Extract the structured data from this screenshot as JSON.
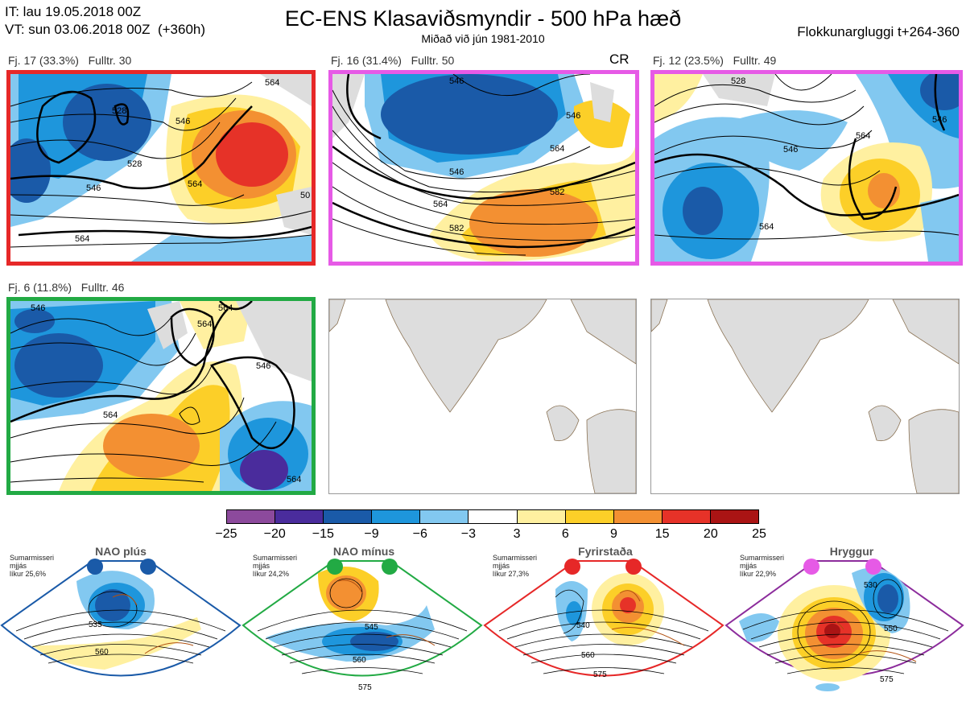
{
  "header": {
    "it": "IT: lau 19.05.2018 00Z",
    "vt": "VT: sun 03.06.2018 00Z  (+360h)",
    "title": "EC-ENS Klasaviðsmyndir - 500 hPa hæð",
    "subtitle": "Miðað við jún 1981-2010",
    "window": "Flokkunargluggi t+264-360"
  },
  "panels": [
    {
      "label": "Fj. 17 (33.3%)   Fulltr. 30",
      "frame_color": "#e62828",
      "contours": [
        "528",
        "546",
        "564",
        "564",
        "546",
        "50",
        "528",
        "564"
      ]
    },
    {
      "label": "Fj. 16 (31.4%)   Fulltr. 50",
      "frame_color": "#e65ae6",
      "badge": "CR",
      "contours": [
        "546",
        "564",
        "546",
        "564",
        "582",
        "582",
        "546"
      ]
    },
    {
      "label": "Fj. 12 (23.5%)   Fulltr. 49",
      "frame_color": "#e65ae6",
      "contours": [
        "546",
        "564",
        "564",
        "546",
        "528"
      ]
    },
    {
      "label": "Fj. 6 (11.8%)   Fulltr. 46",
      "frame_color": "#22aa44",
      "contours": [
        "546",
        "564",
        "564",
        "546",
        "564",
        "564"
      ]
    }
  ],
  "colorbar": {
    "colors": [
      "#8c4a9c",
      "#4a2c9c",
      "#1a5aa8",
      "#1e96dc",
      "#82c8f0",
      "#ffffff",
      "#fff0a0",
      "#fccf28",
      "#f39032",
      "#e63228",
      "#aa1414"
    ],
    "ticks": [
      "−25",
      "−20",
      "−15",
      "−9",
      "−6",
      "−3",
      "3",
      "6",
      "9",
      "15",
      "20",
      "25"
    ]
  },
  "weather_regimes": [
    {
      "name": "NAO plús",
      "note": "Sumarmisseri\nmjjás\nlíkur 25,6%",
      "color": "#1a5aa8",
      "contours": [
        "535",
        "560"
      ]
    },
    {
      "name": "NAO mínus",
      "note": "Sumarmisseri\nmjjás\nlíkur 24,2%",
      "color": "#22aa44",
      "contours": [
        "545",
        "560",
        "575"
      ]
    },
    {
      "name": "Fyrirstaða",
      "note": "Sumarmisseri\nmjjás\nlíkur 27,3%",
      "color": "#e62828",
      "contours": [
        "540",
        "560",
        "575"
      ]
    },
    {
      "name": "Hryggur",
      "note": "Sumarmisseri\nmjjás\nlíkur 22,9%",
      "color": "#8c2c9c",
      "contours": [
        "530",
        "550",
        "575"
      ]
    }
  ]
}
